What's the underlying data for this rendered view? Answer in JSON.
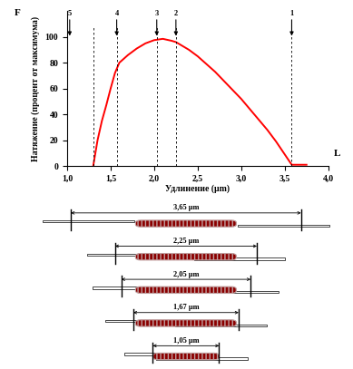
{
  "chart_data": {
    "type": "line",
    "ylabel": "Натяжение (процент от максимума)",
    "xlabel": "Удлинение (µm)",
    "y_axis_name": "F",
    "x_axis_name": "L",
    "color": "#ff0000",
    "x": [
      1.3,
      1.35,
      1.4,
      1.45,
      1.5,
      1.55,
      1.6,
      1.7,
      1.8,
      1.9,
      2.0,
      2.1,
      2.2,
      2.25,
      2.3,
      2.4,
      2.5,
      2.6,
      2.7,
      2.8,
      2.9,
      3.0,
      3.1,
      3.2,
      3.3,
      3.4,
      3.5,
      3.58,
      3.65,
      3.75
    ],
    "values": [
      0,
      20,
      35,
      47,
      60,
      72,
      80,
      86,
      91,
      95,
      97.5,
      98.5,
      97,
      96,
      94,
      90,
      85,
      79,
      73,
      66,
      59,
      52,
      44,
      36,
      28,
      19,
      9,
      1,
      1,
      1
    ],
    "xlim": [
      1.0,
      4.0
    ],
    "xticks": [
      {
        "value": 1.0,
        "label": "1,0"
      },
      {
        "value": 1.5,
        "label": "1,5"
      },
      {
        "value": 2.0,
        "label": "2,0"
      },
      {
        "value": 2.5,
        "label": "2,5"
      },
      {
        "value": 3.0,
        "label": "3,0"
      },
      {
        "value": 3.5,
        "label": "3,5"
      },
      {
        "value": 4.0,
        "label": "4,0"
      }
    ],
    "ylim": [
      0,
      120
    ],
    "yticks": [
      0,
      20,
      40,
      60,
      80,
      100
    ],
    "markers": [
      {
        "x": 3.58,
        "label": "1"
      },
      {
        "x": 2.25,
        "label": "2"
      },
      {
        "x": 2.03,
        "label": "3"
      },
      {
        "x": 1.57,
        "label": "4"
      },
      {
        "x": 1.03,
        "label": "5"
      }
    ],
    "dashed_x": [
      1.3,
      1.57,
      2.03,
      2.25,
      3.58
    ]
  },
  "diagram": {
    "sarcomeres": [
      {
        "length": 3.65,
        "label": "3,65 µm"
      },
      {
        "length": 2.25,
        "label": "2,25 µm"
      },
      {
        "length": 2.05,
        "label": "2,05 µm"
      },
      {
        "length": 1.67,
        "label": "1,67 µm"
      },
      {
        "length": 1.05,
        "label": "1,05 µm"
      }
    ]
  }
}
